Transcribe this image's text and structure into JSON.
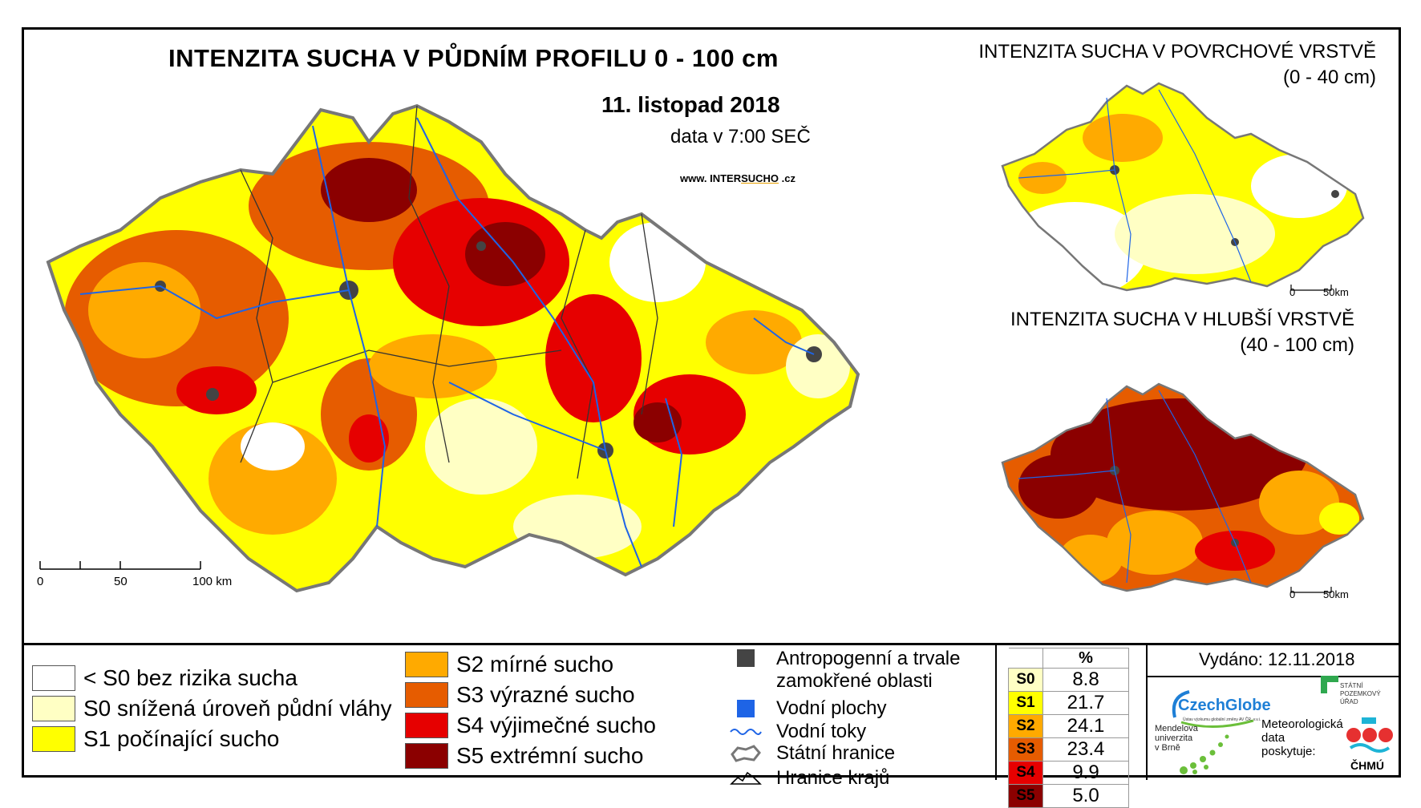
{
  "main_title": "INTENZITA SUCHA V PŮDNÍM PROFILU 0 - 100 cm",
  "date": "11. listopad 2018",
  "data_time": "data v 7:00 SEČ",
  "website": {
    "prefix": "www. INTER",
    "accent": "SUCHO",
    "suffix": " .cz"
  },
  "main_scale": {
    "labels": [
      "0",
      "50",
      "100 km"
    ]
  },
  "inset_top": {
    "title": "INTENZITA SUCHA V POVRCHOVÉ VRSTVĚ",
    "subtitle": "(0 - 40 cm)",
    "scale": [
      "0",
      "50km"
    ]
  },
  "inset_bottom": {
    "title": "INTENZITA SUCHA V HLUBŠÍ VRSTVĚ",
    "subtitle": "(40 - 100 cm)",
    "scale": [
      "0",
      "50km"
    ]
  },
  "categories": [
    {
      "label": "< S0 bez rizika sucha",
      "color": "#ffffff"
    },
    {
      "label": "S0 snížená úroveň půdní vláhy",
      "color": "#ffffc4"
    },
    {
      "label": "S1 počínající sucho",
      "color": "#ffff00"
    },
    {
      "label": "S2 mírné sucho",
      "color": "#ffaa00"
    },
    {
      "label": "S3 výrazné sucho",
      "color": "#e65c00"
    },
    {
      "label": "S4 výjimečné sucho",
      "color": "#e60000"
    },
    {
      "label": "S5 extrémní sucho",
      "color": "#8b0000"
    }
  ],
  "symbols": {
    "anthropogenic_line1": "Antropogenní a trvale",
    "anthropogenic_line2": "zamokřené oblasti",
    "water_bodies": "Vodní plochy",
    "water_streams": "Vodní toky",
    "state_border": "Státní hranice",
    "region_border": "Hranice krajů"
  },
  "percent_table": {
    "header": "%",
    "rows": [
      {
        "code": "S0",
        "value": "8.8",
        "color": "#ffffc4"
      },
      {
        "code": "S1",
        "value": "21.7",
        "color": "#ffff00"
      },
      {
        "code": "S2",
        "value": "24.1",
        "color": "#ffaa00"
      },
      {
        "code": "S3",
        "value": "23.4",
        "color": "#e65c00"
      },
      {
        "code": "S4",
        "value": "9.9",
        "color": "#e60000"
      },
      {
        "code": "S5",
        "value": "5.0",
        "color": "#8b0000"
      }
    ]
  },
  "issued": "Vydáno: 12.11.2018",
  "logos": {
    "czechglobe": "CzechGlobe",
    "czechglobe_sub": "Ústav výzkumu globální změny AV ČR, v.v.i.",
    "spu_line1": "STÁTNÍ",
    "spu_line2": "POZEMKOVÝ",
    "spu_line3": "ÚŘAD",
    "mendel_line1": "Mendelova",
    "mendel_line2": "univerzita",
    "mendel_line3": "v Brně",
    "meteo_line1": "Meteorologická",
    "meteo_line2": "data",
    "meteo_line3": "poskytuje:",
    "chmu": "ČHMÚ"
  }
}
